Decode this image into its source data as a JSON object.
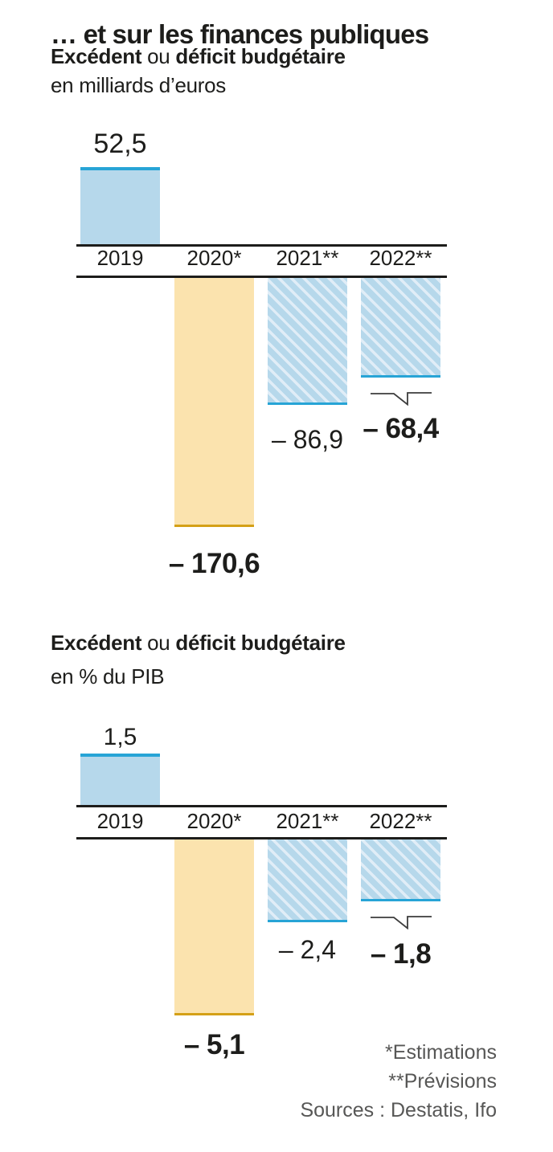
{
  "page": {
    "title": "… et sur les finances publiques"
  },
  "charts": [
    {
      "subtitle_bold1": "Excédent",
      "subtitle_connector": " ou ",
      "subtitle_bold2": "déficit budgétaire"
    },
    {
      "subtitle_bold1": "Excédent",
      "subtitle_connector": " ou ",
      "subtitle_bold2": "déficit budgétaire"
    }
  ],
  "chart_data": [
    {
      "type": "bar",
      "title": "Excédent ou déficit budgétaire",
      "unit": "en milliards d’euros",
      "categories": [
        "2019",
        "2020*",
        "2021**",
        "2022**"
      ],
      "values": [
        52.5,
        -170.6,
        -86.9,
        -68.4
      ],
      "value_labels": [
        "52,5",
        "– 170,6",
        "– 86,9",
        "– 68,4"
      ],
      "bold_value_labels": [
        false,
        true,
        false,
        true
      ],
      "bar_styles": [
        "solid-blue",
        "solid-yellow",
        "hatched-blue",
        "hatched-blue"
      ],
      "break_marker_on": "2022**",
      "baseline": 0,
      "grid": false,
      "legend": false
    },
    {
      "type": "bar",
      "title": "Excédent ou déficit budgétaire",
      "unit": "en % du PIB",
      "categories": [
        "2019",
        "2020*",
        "2021**",
        "2022**"
      ],
      "values": [
        1.5,
        -5.1,
        -2.4,
        -1.8
      ],
      "value_labels": [
        "1,5",
        "– 5,1",
        "– 2,4",
        "– 1,8"
      ],
      "bold_value_labels": [
        false,
        true,
        false,
        true
      ],
      "bar_styles": [
        "solid-blue",
        "solid-yellow",
        "hatched-blue",
        "hatched-blue"
      ],
      "break_marker_on": "2022**",
      "baseline": 0,
      "grid": false,
      "legend": false
    }
  ],
  "footnotes": [
    "*Estimations",
    "**Prévisions",
    "Sources : Destatis, Ifo"
  ],
  "colors": {
    "text": "#1d1d1b",
    "axis": "#1d1d1b",
    "bar_blue_fill": "#b6d8eb",
    "bar_blue_edge": "#27a4d6",
    "hatch_stripe": "#e0edf7",
    "bar_yellow_fill": "#fbe3ae",
    "bar_yellow_edge": "#d4a017",
    "break_marker": "#3c3c3c",
    "footnote_gray": "#575756"
  }
}
